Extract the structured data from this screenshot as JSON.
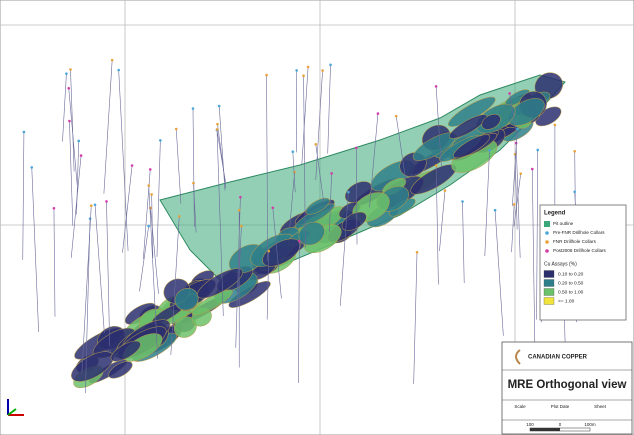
{
  "legend": {
    "title": "Legend",
    "symbols": [
      {
        "label": "Pit outline",
        "color": "#3aa878",
        "shape": "square"
      },
      {
        "label": "Pre-FNR Drillhole Collars",
        "color": "#4aa6d8",
        "shape": "dot"
      },
      {
        "label": "FNR Drillhole Collars",
        "color": "#e8a23a",
        "shape": "dot"
      },
      {
        "label": "Post2008 Drillhole Collars",
        "color": "#d23ca8",
        "shape": "dot"
      }
    ],
    "assay_title": "Cu Assays (%)",
    "assays": [
      {
        "label": "0.10 to 0.20",
        "color": "#2b2f6e"
      },
      {
        "label": "0.20 to 0.50",
        "color": "#2f7f8a"
      },
      {
        "label": "0.50 to 1.00",
        "color": "#6cc26a"
      },
      {
        "label": ">= 1.00",
        "color": "#f0e43c"
      }
    ]
  },
  "title_block": {
    "company": "CANADIAN COPPER",
    "title": "MRE Orthogonal view",
    "fields": [
      "Scale",
      "Plot Date",
      "Sheet"
    ],
    "scale_bar": [
      "100",
      "0",
      "100m"
    ]
  }
}
